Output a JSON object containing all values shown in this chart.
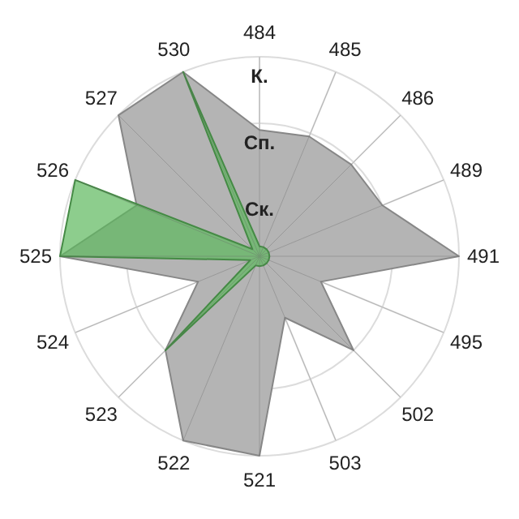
{
  "chart_data": {
    "type": "radar",
    "categories": [
      "484",
      "485",
      "486",
      "489",
      "491",
      "495",
      "502",
      "503",
      "521",
      "522",
      "523",
      "524",
      "525",
      "526",
      "527",
      "530"
    ],
    "series": [
      {
        "color": "#b4b4b4",
        "values": [
          1.9,
          1.95,
          1.95,
          2,
          3,
          1,
          2,
          1,
          3,
          3,
          2,
          1,
          3,
          2,
          3,
          3
        ]
      },
      {
        "color": "#5cb85c",
        "values": [
          0.15,
          0.15,
          0.15,
          0.15,
          0.15,
          0.15,
          0.15,
          0.15,
          0.15,
          0.15,
          2,
          0.15,
          3,
          3,
          0.15,
          3
        ]
      }
    ],
    "ylim": [
      0,
      3
    ],
    "yticks": [
      {
        "value": 1,
        "label": "Ск."
      },
      {
        "value": 2,
        "label": "Сп."
      },
      {
        "value": 3,
        "label": "К."
      }
    ],
    "grid": true,
    "marker": "none",
    "line_style": "solid"
  }
}
